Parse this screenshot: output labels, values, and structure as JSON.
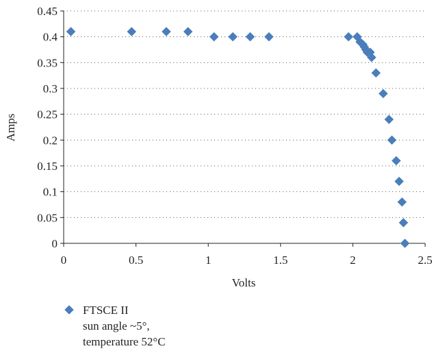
{
  "chart_data": {
    "type": "scatter",
    "xlabel": "Volts",
    "ylabel": "Amps",
    "xlim": [
      0,
      2.5
    ],
    "ylim": [
      0,
      0.45
    ],
    "xticks": [
      "0",
      "0.5",
      "1",
      "1.5",
      "2",
      "2.5"
    ],
    "yticks": [
      "0",
      "0.05",
      "0.1",
      "0.15",
      "0.2",
      "0.25",
      "0.3",
      "0.35",
      "0.4",
      "0.45"
    ],
    "grid": "horizontal-dotted",
    "legend_position": "bottom-left",
    "series": [
      {
        "name_lines": [
          "FTSCE II",
          "sun angle ~5°,",
          "temperature 52°C"
        ],
        "color": "#4a7ebb",
        "marker": "diamond",
        "points": [
          [
            0.05,
            0.41
          ],
          [
            0.47,
            0.41
          ],
          [
            0.71,
            0.41
          ],
          [
            0.86,
            0.41
          ],
          [
            1.04,
            0.4
          ],
          [
            1.17,
            0.4
          ],
          [
            1.29,
            0.4
          ],
          [
            1.42,
            0.4
          ],
          [
            1.97,
            0.4
          ],
          [
            2.03,
            0.4
          ],
          [
            2.05,
            0.39
          ],
          [
            2.07,
            0.385
          ],
          [
            2.08,
            0.38
          ],
          [
            2.09,
            0.375
          ],
          [
            2.1,
            0.37
          ],
          [
            2.12,
            0.37
          ],
          [
            2.13,
            0.36
          ],
          [
            2.16,
            0.33
          ],
          [
            2.21,
            0.29
          ],
          [
            2.25,
            0.24
          ],
          [
            2.27,
            0.2
          ],
          [
            2.3,
            0.16
          ],
          [
            2.32,
            0.12
          ],
          [
            2.34,
            0.08
          ],
          [
            2.35,
            0.04
          ],
          [
            2.36,
            0.0
          ]
        ]
      }
    ]
  }
}
